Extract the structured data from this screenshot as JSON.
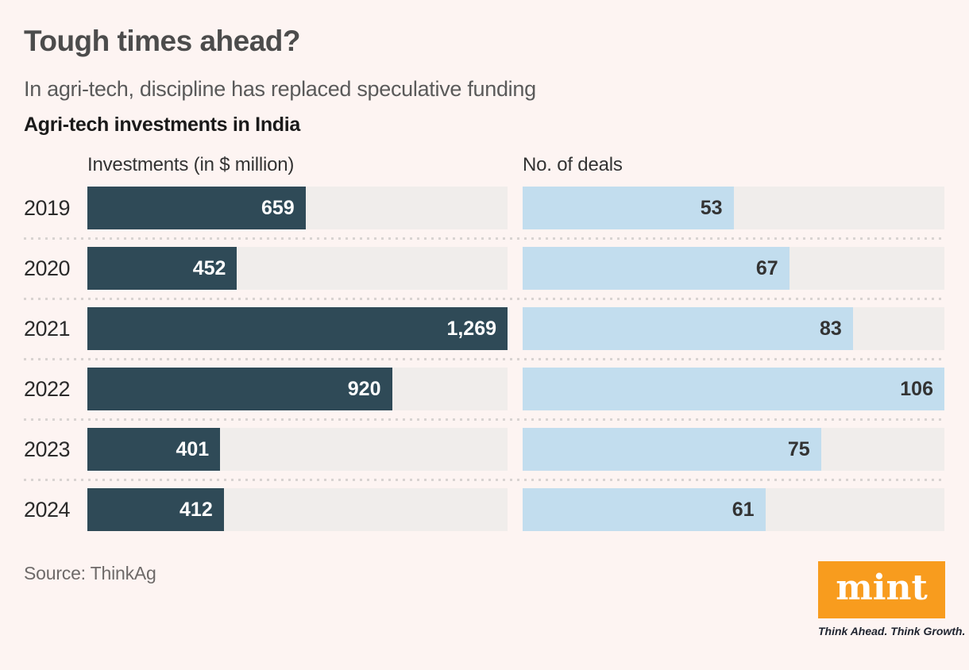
{
  "title": "Tough times ahead?",
  "subtitle": "In agri-tech, discipline has replaced speculative funding",
  "chart_title": "Agri-tech investments in India",
  "column_headers": {
    "investments": "Investments (in $ million)",
    "deals": "No. of deals"
  },
  "source": "Source: ThinkAg",
  "brand": {
    "logo_text": "mint",
    "tagline": "Think Ahead. Think Growth."
  },
  "colors": {
    "background": "#fdf4f2",
    "investment_bar": "#2f4a57",
    "deals_bar": "#c2ddee",
    "bar_track": "#f0edeb",
    "brand_orange": "#f89c1e"
  },
  "chart_data": {
    "type": "bar",
    "orientation": "horizontal",
    "categories": [
      "2019",
      "2020",
      "2021",
      "2022",
      "2023",
      "2024"
    ],
    "series": [
      {
        "name": "Investments (in $ million)",
        "values": [
          659,
          452,
          1269,
          920,
          401,
          412
        ],
        "labels": [
          "659",
          "452",
          "1,269",
          "920",
          "401",
          "412"
        ],
        "axis_max": 1269
      },
      {
        "name": "No. of deals",
        "values": [
          53,
          67,
          83,
          106,
          75,
          61
        ],
        "labels": [
          "53",
          "67",
          "83",
          "106",
          "75",
          "61"
        ],
        "axis_max": 106
      }
    ],
    "grid": false,
    "legend_position": "column-headers",
    "value_labels": "inside-end"
  }
}
